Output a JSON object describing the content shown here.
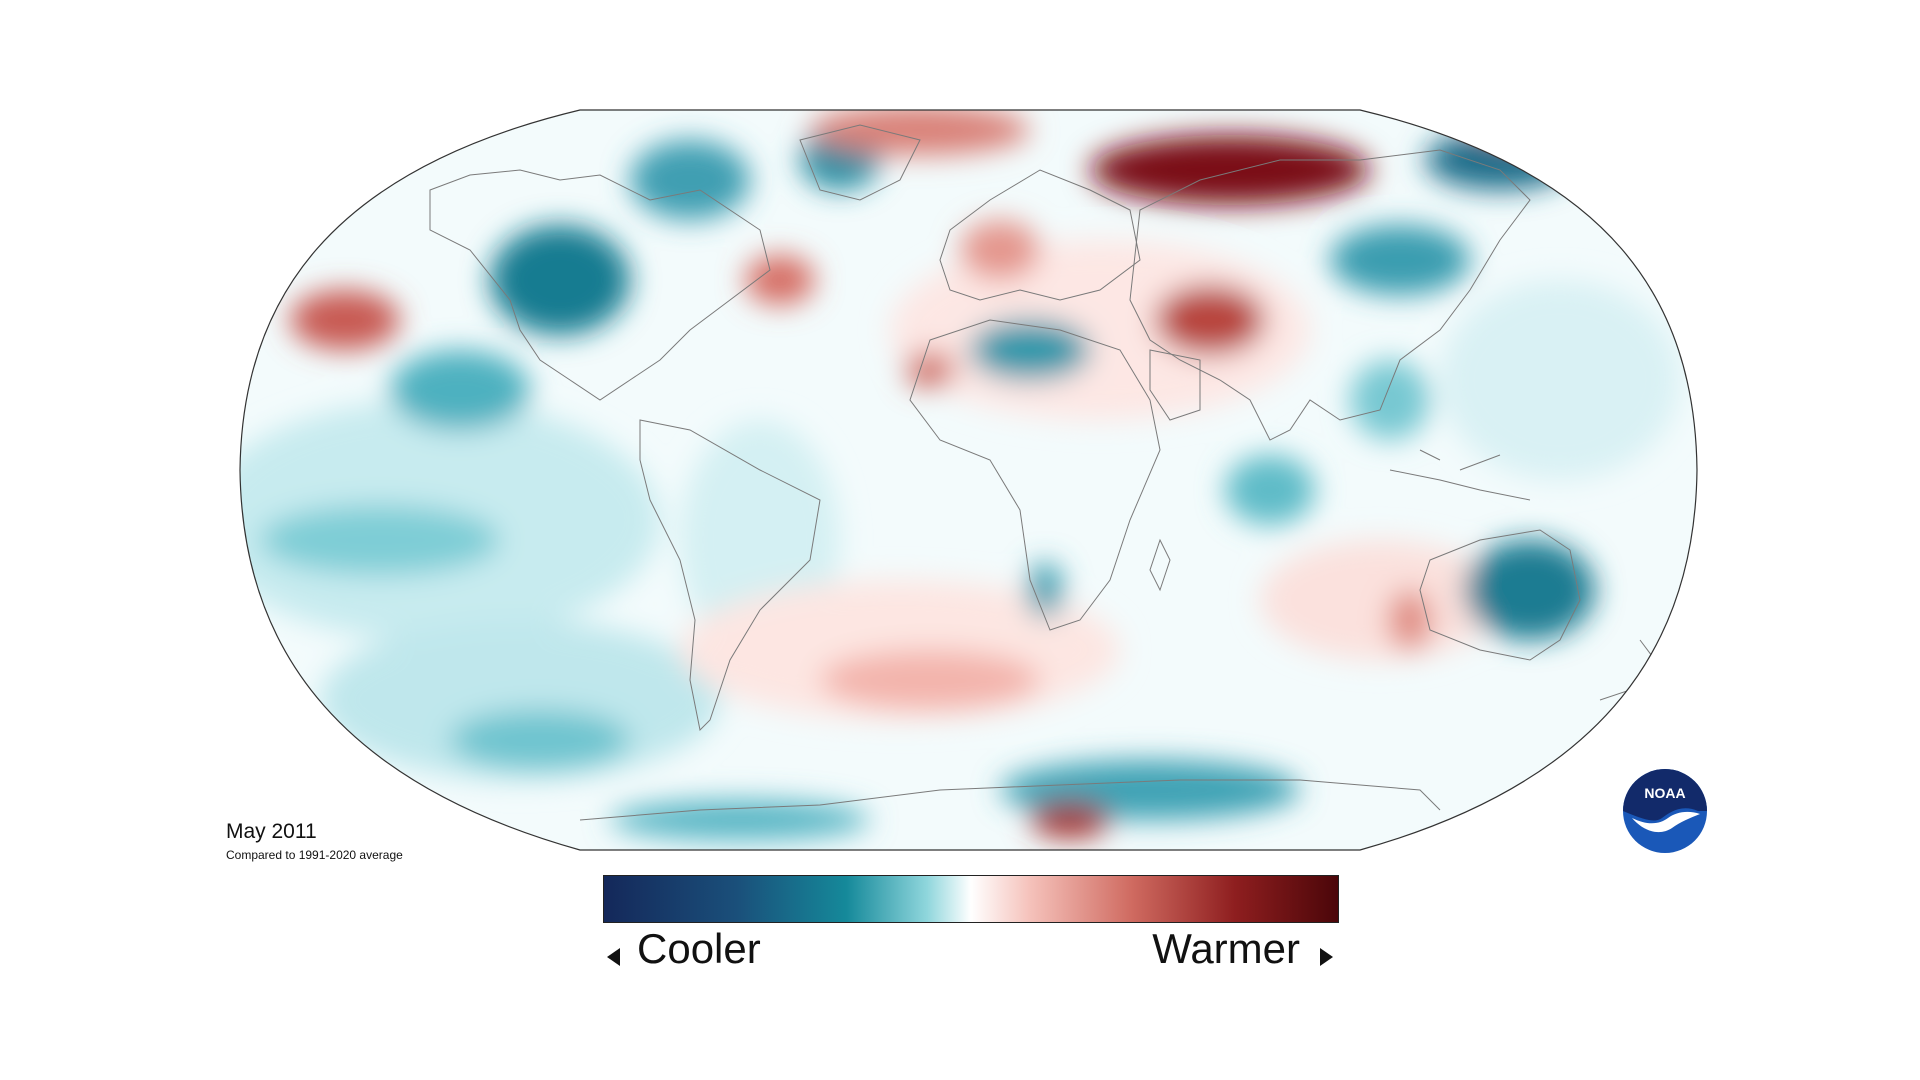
{
  "map": {
    "date_label": "May 2011",
    "comparison_label": "Compared to 1991-2020 average",
    "projection": "robinson"
  },
  "legend": {
    "cooler_label": "Cooler",
    "warmer_label": "Warmer",
    "colors": [
      "#14285a",
      "#0f6f86",
      "#69c7d2",
      "#ffffff",
      "#eea39a",
      "#b23a33",
      "#4b0609"
    ]
  },
  "logo": {
    "text": "NOAA",
    "primary_color": "#1a58b8",
    "dark_color": "#122a6a"
  }
}
